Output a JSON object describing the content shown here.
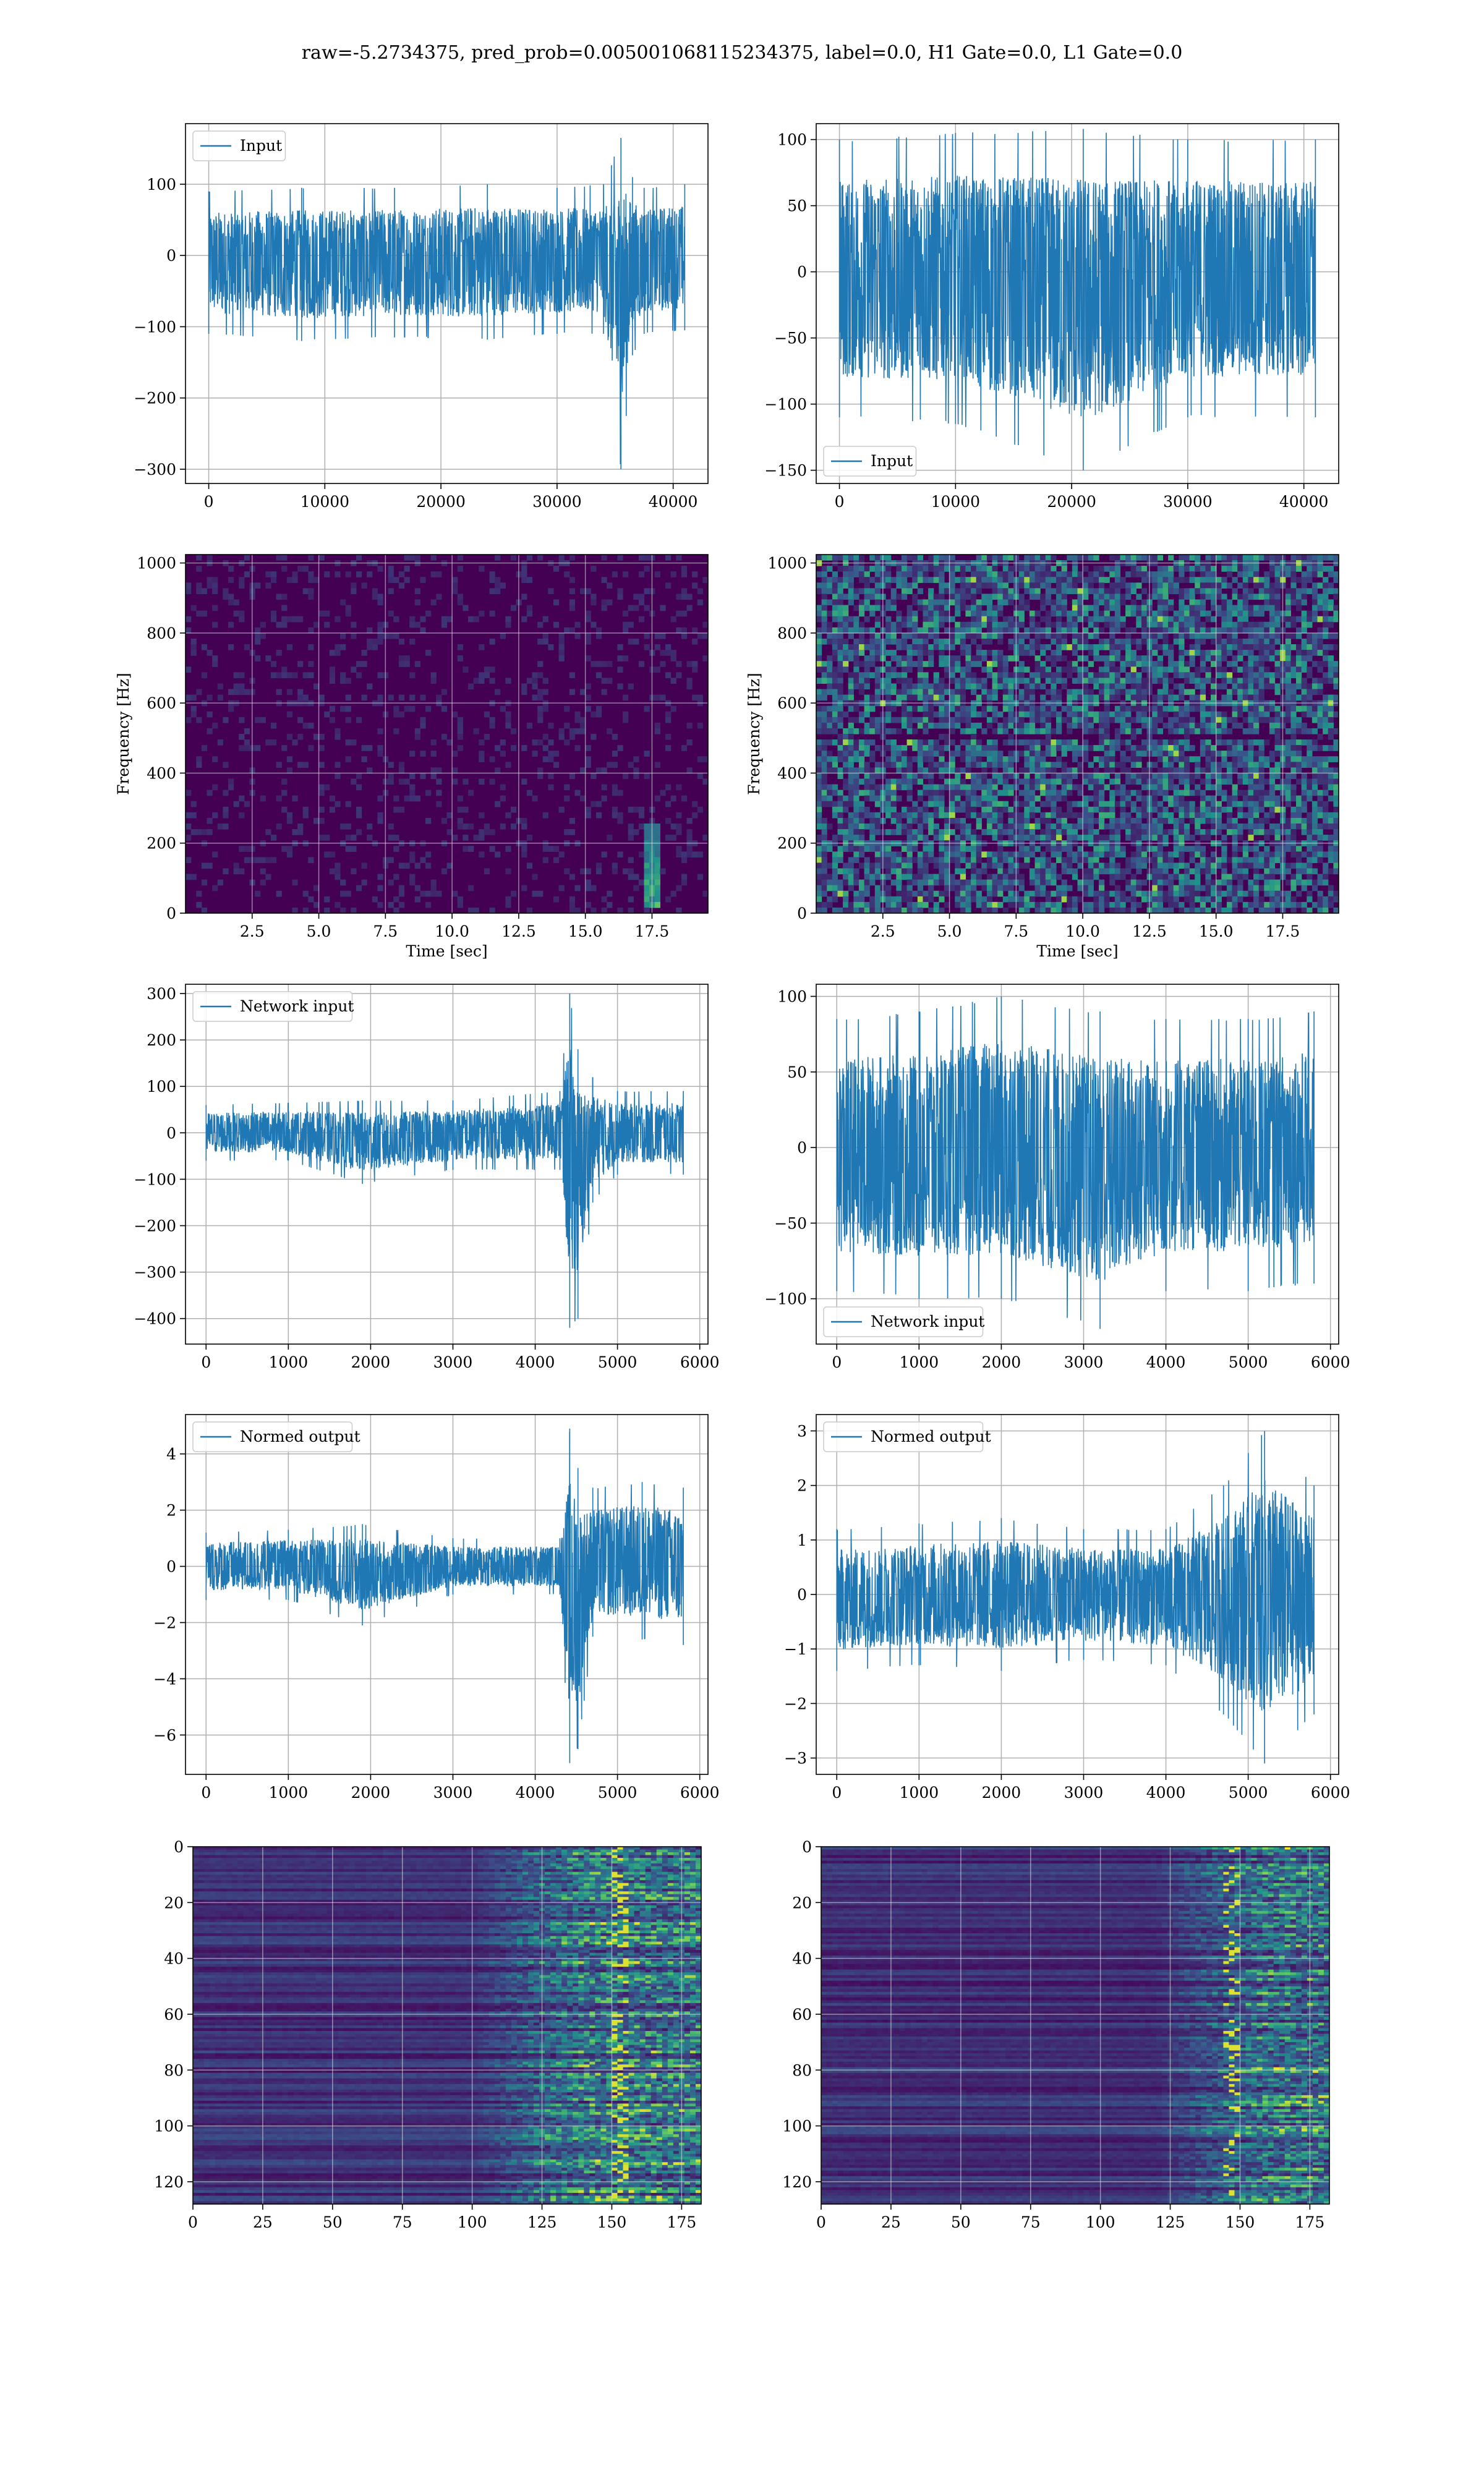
{
  "figure": {
    "suptitle": "raw=-5.2734375, pred_prob=0.005001068115234375, label=0.0, H1 Gate=0.0, L1 Gate=0.0"
  },
  "colors": {
    "line": "#1f77b4",
    "grid": "#b0b0b0",
    "viridis_dark": "#440154",
    "viridis_mid": "#21918c",
    "viridis_bright": "#fde725"
  },
  "chart_data": [
    {
      "id": "h1-input",
      "type": "line",
      "panel": "row1-left",
      "series": [
        {
          "name": "Input",
          "envelope": [
            [
              0,
              -110,
              90
            ],
            [
              8000,
              -120,
              95
            ],
            [
              16000,
              -115,
              95
            ],
            [
              24000,
              -118,
              100
            ],
            [
              30000,
              -110,
              95
            ],
            [
              34000,
              -110,
              100
            ],
            [
              35500,
              -300,
              165
            ],
            [
              36500,
              -140,
              110
            ],
            [
              37500,
              -110,
              95
            ],
            [
              41000,
              -105,
              100
            ]
          ]
        }
      ],
      "legend": "upper left",
      "xlim": [
        -2000,
        43000
      ],
      "ylim": [
        -320,
        185
      ],
      "xticks": [
        0,
        10000,
        20000,
        30000,
        40000
      ],
      "xtick_labels": [
        "0",
        "10000",
        "20000",
        "30000",
        "40000"
      ],
      "yticks": [
        100,
        0,
        -100,
        -200,
        -300
      ],
      "ytick_labels": [
        "100",
        "0",
        "−100",
        "−200",
        "−300"
      ],
      "xlabel": "",
      "ylabel": "",
      "grid": true
    },
    {
      "id": "l1-input",
      "type": "line",
      "panel": "row1-right",
      "series": [
        {
          "name": "Input",
          "envelope": [
            [
              0,
              -110,
              100
            ],
            [
              10000,
              -115,
              105
            ],
            [
              21000,
              -150,
              108
            ],
            [
              30000,
              -110,
              100
            ],
            [
              41000,
              -110,
              100
            ]
          ]
        }
      ],
      "legend": "lower left",
      "xlim": [
        -2000,
        43000
      ],
      "ylim": [
        -160,
        112
      ],
      "xticks": [
        0,
        10000,
        20000,
        30000,
        40000
      ],
      "xtick_labels": [
        "0",
        "10000",
        "20000",
        "30000",
        "40000"
      ],
      "yticks": [
        100,
        50,
        0,
        -50,
        -100,
        -150
      ],
      "ytick_labels": [
        "100",
        "50",
        "0",
        "−50",
        "−100",
        "−150"
      ],
      "xlabel": "",
      "ylabel": "",
      "grid": true
    },
    {
      "id": "h1-spectrogram",
      "type": "heatmap",
      "panel": "row2-left",
      "description_values": {
        "background": "dark",
        "feature": {
          "time_sec": [
            17.2,
            17.8
          ],
          "freq_hz": [
            20,
            260
          ]
        }
      },
      "xlim": [
        0,
        19.6
      ],
      "ylim": [
        0,
        1024
      ],
      "xticks": [
        2.5,
        5.0,
        7.5,
        10.0,
        12.5,
        15.0,
        17.5
      ],
      "xtick_labels": [
        "2.5",
        "5.0",
        "7.5",
        "10.0",
        "12.5",
        "15.0",
        "17.5"
      ],
      "yticks": [
        0,
        200,
        400,
        600,
        800,
        1000
      ],
      "ytick_labels": [
        "0",
        "200",
        "400",
        "600",
        "800",
        "1000"
      ],
      "xlabel": "Time [sec]",
      "ylabel": "Frequency [Hz]",
      "grid": true
    },
    {
      "id": "l1-spectrogram",
      "type": "heatmap",
      "panel": "row2-right",
      "description_values": {
        "background": "speckled",
        "dark_band_hz": 500
      },
      "xlim": [
        0,
        19.6
      ],
      "ylim": [
        0,
        1024
      ],
      "xticks": [
        2.5,
        5.0,
        7.5,
        10.0,
        12.5,
        15.0,
        17.5
      ],
      "xtick_labels": [
        "2.5",
        "5.0",
        "7.5",
        "10.0",
        "12.5",
        "15.0",
        "17.5"
      ],
      "yticks": [
        0,
        200,
        400,
        600,
        800,
        1000
      ],
      "ytick_labels": [
        "0",
        "200",
        "400",
        "600",
        "800",
        "1000"
      ],
      "xlabel": "Time [sec]",
      "ylabel": "Frequency [Hz]",
      "grid": true
    },
    {
      "id": "h1-network-input",
      "type": "line",
      "panel": "row3-left",
      "series": [
        {
          "name": "Network input",
          "envelope": [
            [
              0,
              -60,
              60
            ],
            [
              1000,
              -60,
              65
            ],
            [
              1900,
              -110,
              70
            ],
            [
              3000,
              -80,
              70
            ],
            [
              4300,
              -80,
              90
            ],
            [
              4420,
              -420,
              300
            ],
            [
              4520,
              -400,
              180
            ],
            [
              4700,
              -150,
              120
            ],
            [
              5000,
              -90,
              90
            ],
            [
              5800,
              -90,
              90
            ]
          ]
        }
      ],
      "legend": "upper left",
      "xlim": [
        -250,
        6100
      ],
      "ylim": [
        -455,
        320
      ],
      "xticks": [
        0,
        1000,
        2000,
        3000,
        4000,
        5000,
        6000
      ],
      "xtick_labels": [
        "0",
        "1000",
        "2000",
        "3000",
        "4000",
        "5000",
        "6000"
      ],
      "yticks": [
        300,
        200,
        100,
        0,
        -100,
        -200,
        -300,
        -400
      ],
      "ytick_labels": [
        "300",
        "200",
        "100",
        "0",
        "−100",
        "−200",
        "−300",
        "−400"
      ],
      "xlabel": "",
      "ylabel": "",
      "grid": true
    },
    {
      "id": "l1-network-input",
      "type": "line",
      "panel": "row3-right",
      "series": [
        {
          "name": "Network input",
          "envelope": [
            [
              0,
              -95,
              85
            ],
            [
              1000,
              -100,
              90
            ],
            [
              2000,
              -100,
              100
            ],
            [
              3200,
              -120,
              90
            ],
            [
              4000,
              -95,
              85
            ],
            [
              5000,
              -95,
              85
            ],
            [
              5800,
              -90,
              90
            ]
          ]
        }
      ],
      "legend": "lower left",
      "xlim": [
        -250,
        6100
      ],
      "ylim": [
        -130,
        108
      ],
      "xticks": [
        0,
        1000,
        2000,
        3000,
        4000,
        5000,
        6000
      ],
      "xtick_labels": [
        "0",
        "1000",
        "2000",
        "3000",
        "4000",
        "5000",
        "6000"
      ],
      "yticks": [
        100,
        50,
        0,
        -50,
        -100
      ],
      "ytick_labels": [
        "100",
        "50",
        "0",
        "−50",
        "−100"
      ],
      "xlabel": "",
      "ylabel": "",
      "grid": true
    },
    {
      "id": "h1-normed-output",
      "type": "line",
      "panel": "row4-left",
      "series": [
        {
          "name": "Normed output",
          "envelope": [
            [
              0,
              -1.2,
              1.2
            ],
            [
              1000,
              -1.2,
              1.3
            ],
            [
              1900,
              -2.1,
              1.5
            ],
            [
              3000,
              -1.0,
              1.0
            ],
            [
              4300,
              -1.0,
              1.0
            ],
            [
              4420,
              -7.0,
              4.9
            ],
            [
              4520,
              -6.5,
              3.5
            ],
            [
              4700,
              -2.5,
              2.8
            ],
            [
              5300,
              -2.6,
              3.0
            ],
            [
              5800,
              -2.8,
              2.8
            ]
          ]
        }
      ],
      "legend": "upper left",
      "xlim": [
        -250,
        6100
      ],
      "ylim": [
        -7.4,
        5.4
      ],
      "xticks": [
        0,
        1000,
        2000,
        3000,
        4000,
        5000,
        6000
      ],
      "xtick_labels": [
        "0",
        "1000",
        "2000",
        "3000",
        "4000",
        "5000",
        "6000"
      ],
      "yticks": [
        4,
        2,
        0,
        -2,
        -4,
        -6
      ],
      "ytick_labels": [
        "4",
        "2",
        "0",
        "−2",
        "−4",
        "−6"
      ],
      "xlabel": "",
      "ylabel": "",
      "grid": true
    },
    {
      "id": "l1-normed-output",
      "type": "line",
      "panel": "row4-right",
      "series": [
        {
          "name": "Normed output",
          "envelope": [
            [
              0,
              -1.4,
              1.2
            ],
            [
              1000,
              -1.3,
              1.3
            ],
            [
              2000,
              -1.4,
              1.4
            ],
            [
              3000,
              -1.2,
              1.2
            ],
            [
              4000,
              -1.3,
              1.2
            ],
            [
              4700,
              -2.2,
              2.0
            ],
            [
              5200,
              -3.1,
              3.0
            ],
            [
              5800,
              -2.2,
              2.0
            ]
          ]
        }
      ],
      "legend": "upper left",
      "xlim": [
        -250,
        6100
      ],
      "ylim": [
        -3.3,
        3.3
      ],
      "xticks": [
        0,
        1000,
        2000,
        3000,
        4000,
        5000,
        6000
      ],
      "xtick_labels": [
        "0",
        "1000",
        "2000",
        "3000",
        "4000",
        "5000",
        "6000"
      ],
      "yticks": [
        3,
        2,
        1,
        0,
        -1,
        -2,
        -3
      ],
      "ytick_labels": [
        "3",
        "2",
        "1",
        "0",
        "−1",
        "−2",
        "−3"
      ],
      "xlabel": "",
      "ylabel": "",
      "grid": true
    },
    {
      "id": "h1-feature-map",
      "type": "heatmap",
      "panel": "row5-left",
      "description_values": {
        "rows": 128,
        "cols": 182,
        "active_from_col": 100,
        "bright_cols": [
          152,
          153
        ]
      },
      "xlim": [
        0,
        182
      ],
      "ylim": [
        128,
        0
      ],
      "xticks": [
        0,
        25,
        50,
        75,
        100,
        125,
        150,
        175
      ],
      "xtick_labels": [
        "0",
        "25",
        "50",
        "75",
        "100",
        "125",
        "150",
        "175"
      ],
      "yticks": [
        0,
        20,
        40,
        60,
        80,
        100,
        120
      ],
      "ytick_labels": [
        "0",
        "20",
        "40",
        "60",
        "80",
        "100",
        "120"
      ],
      "xlabel": "",
      "ylabel": "",
      "grid": true
    },
    {
      "id": "l1-feature-map",
      "type": "heatmap",
      "panel": "row5-right",
      "description_values": {
        "rows": 128,
        "cols": 182,
        "active_from_col": 120,
        "bright_cols": [
          147,
          148
        ]
      },
      "xlim": [
        0,
        182
      ],
      "ylim": [
        128,
        0
      ],
      "xticks": [
        0,
        25,
        50,
        75,
        100,
        125,
        150,
        175
      ],
      "xtick_labels": [
        "0",
        "25",
        "50",
        "75",
        "100",
        "125",
        "150",
        "175"
      ],
      "yticks": [
        0,
        20,
        40,
        60,
        80,
        100,
        120
      ],
      "ytick_labels": [
        "0",
        "20",
        "40",
        "60",
        "80",
        "100",
        "120"
      ],
      "xlabel": "",
      "ylabel": "",
      "grid": true
    }
  ]
}
